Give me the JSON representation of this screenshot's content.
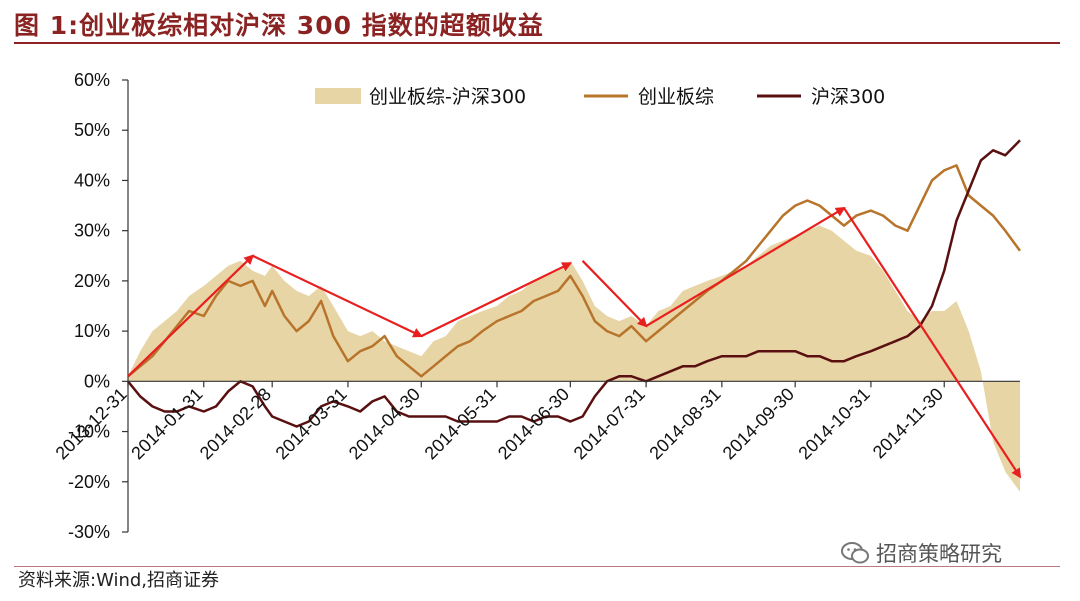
{
  "title": "图 1:创业板综相对沪深 300 指数的超额收益",
  "source": "资料来源:Wind,招商证券",
  "watermark": "招商策略研究",
  "colors": {
    "area": "#e8d5a6",
    "cyb": "#b8742a",
    "hs300": "#5a1010",
    "arrow": "#e81f1f",
    "accent": "#8b2323"
  },
  "chart_data": {
    "type": "line",
    "title": "图 1:创业板综相对沪深 300 指数的超额收益",
    "xlabel": "",
    "ylabel": "",
    "ylim": [
      -30,
      60
    ],
    "yticks": [
      "60%",
      "50%",
      "40%",
      "30%",
      "20%",
      "10%",
      "0%",
      "-10%",
      "-20%",
      "-30%"
    ],
    "x_tick_labels": [
      "2013-12-31",
      "2014-01-31",
      "2014-02-28",
      "2014-03-31",
      "2014-04-30",
      "2014-05-31",
      "2014-06-30",
      "2014-07-31",
      "2014-08-31",
      "2014-09-30",
      "2014-10-31",
      "2014-11-30"
    ],
    "x_start": "2013-12-31",
    "x_end": "2014-12-31",
    "legend": "top",
    "grid": false,
    "series": [
      {
        "name": "创业板综-沪深300",
        "kind": "area",
        "x": [
          "2013-12-31",
          "2014-01-05",
          "2014-01-10",
          "2014-01-15",
          "2014-01-20",
          "2014-01-25",
          "2014-01-31",
          "2014-02-05",
          "2014-02-10",
          "2014-02-15",
          "2014-02-20",
          "2014-02-25",
          "2014-02-28",
          "2014-03-05",
          "2014-03-10",
          "2014-03-15",
          "2014-03-20",
          "2014-03-25",
          "2014-03-31",
          "2014-04-05",
          "2014-04-10",
          "2014-04-15",
          "2014-04-20",
          "2014-04-25",
          "2014-04-30",
          "2014-05-05",
          "2014-05-10",
          "2014-05-15",
          "2014-05-20",
          "2014-05-25",
          "2014-05-31",
          "2014-06-05",
          "2014-06-10",
          "2014-06-15",
          "2014-06-20",
          "2014-06-25",
          "2014-06-30",
          "2014-07-05",
          "2014-07-10",
          "2014-07-15",
          "2014-07-20",
          "2014-07-25",
          "2014-07-31",
          "2014-08-05",
          "2014-08-10",
          "2014-08-15",
          "2014-08-20",
          "2014-08-25",
          "2014-08-31",
          "2014-09-05",
          "2014-09-10",
          "2014-09-15",
          "2014-09-20",
          "2014-09-25",
          "2014-09-30",
          "2014-10-05",
          "2014-10-10",
          "2014-10-15",
          "2014-10-20",
          "2014-10-25",
          "2014-10-31",
          "2014-11-05",
          "2014-11-10",
          "2014-11-15",
          "2014-11-20",
          "2014-11-25",
          "2014-11-30",
          "2014-12-05",
          "2014-12-10",
          "2014-12-15",
          "2014-12-20",
          "2014-12-25",
          "2014-12-31"
        ],
        "values": [
          1,
          6,
          10,
          12,
          14,
          17,
          19,
          21,
          23,
          24,
          22,
          21,
          23,
          20,
          18,
          17,
          19,
          15,
          10,
          9,
          10,
          8,
          7,
          6,
          5,
          8,
          9,
          12,
          13,
          14,
          15,
          17,
          18,
          20,
          21,
          22,
          24,
          20,
          15,
          13,
          12,
          13,
          11,
          14,
          15,
          18,
          19,
          20,
          21,
          22,
          23,
          25,
          27,
          28,
          29,
          30,
          31,
          30,
          28,
          26,
          25,
          22,
          18,
          14,
          12,
          14,
          14,
          16,
          10,
          2,
          -12,
          -18,
          -22
        ]
      },
      {
        "name": "创业板综",
        "kind": "line",
        "x": [
          "2013-12-31",
          "2014-01-05",
          "2014-01-10",
          "2014-01-15",
          "2014-01-20",
          "2014-01-25",
          "2014-01-31",
          "2014-02-05",
          "2014-02-10",
          "2014-02-15",
          "2014-02-20",
          "2014-02-25",
          "2014-02-28",
          "2014-03-05",
          "2014-03-10",
          "2014-03-15",
          "2014-03-20",
          "2014-03-25",
          "2014-03-31",
          "2014-04-05",
          "2014-04-10",
          "2014-04-15",
          "2014-04-20",
          "2014-04-25",
          "2014-04-30",
          "2014-05-05",
          "2014-05-10",
          "2014-05-15",
          "2014-05-20",
          "2014-05-25",
          "2014-05-31",
          "2014-06-05",
          "2014-06-10",
          "2014-06-15",
          "2014-06-20",
          "2014-06-25",
          "2014-06-30",
          "2014-07-05",
          "2014-07-10",
          "2014-07-15",
          "2014-07-20",
          "2014-07-25",
          "2014-07-31",
          "2014-08-05",
          "2014-08-10",
          "2014-08-15",
          "2014-08-20",
          "2014-08-25",
          "2014-08-31",
          "2014-09-05",
          "2014-09-10",
          "2014-09-15",
          "2014-09-20",
          "2014-09-25",
          "2014-09-30",
          "2014-10-05",
          "2014-10-10",
          "2014-10-15",
          "2014-10-20",
          "2014-10-25",
          "2014-10-31",
          "2014-11-05",
          "2014-11-10",
          "2014-11-15",
          "2014-11-20",
          "2014-11-25",
          "2014-11-30",
          "2014-12-05",
          "2014-12-10",
          "2014-12-15",
          "2014-12-20",
          "2014-12-25",
          "2014-12-31"
        ],
        "values": [
          1,
          3,
          5,
          8,
          11,
          14,
          13,
          17,
          20,
          19,
          20,
          15,
          18,
          13,
          10,
          12,
          16,
          9,
          4,
          6,
          7,
          9,
          5,
          3,
          1,
          3,
          5,
          7,
          8,
          10,
          12,
          13,
          14,
          16,
          17,
          18,
          21,
          17,
          12,
          10,
          9,
          11,
          8,
          10,
          12,
          14,
          16,
          18,
          20,
          22,
          24,
          27,
          30,
          33,
          35,
          36,
          35,
          33,
          31,
          33,
          34,
          33,
          31,
          30,
          35,
          40,
          42,
          43,
          37,
          35,
          33,
          30,
          26
        ]
      },
      {
        "name": "沪深300",
        "kind": "line",
        "x": [
          "2013-12-31",
          "2014-01-05",
          "2014-01-10",
          "2014-01-15",
          "2014-01-20",
          "2014-01-25",
          "2014-01-31",
          "2014-02-05",
          "2014-02-10",
          "2014-02-15",
          "2014-02-20",
          "2014-02-25",
          "2014-02-28",
          "2014-03-05",
          "2014-03-10",
          "2014-03-15",
          "2014-03-20",
          "2014-03-25",
          "2014-03-31",
          "2014-04-05",
          "2014-04-10",
          "2014-04-15",
          "2014-04-20",
          "2014-04-25",
          "2014-04-30",
          "2014-05-05",
          "2014-05-10",
          "2014-05-15",
          "2014-05-20",
          "2014-05-25",
          "2014-05-31",
          "2014-06-05",
          "2014-06-10",
          "2014-06-15",
          "2014-06-20",
          "2014-06-25",
          "2014-06-30",
          "2014-07-05",
          "2014-07-10",
          "2014-07-15",
          "2014-07-20",
          "2014-07-25",
          "2014-07-31",
          "2014-08-05",
          "2014-08-10",
          "2014-08-15",
          "2014-08-20",
          "2014-08-25",
          "2014-08-31",
          "2014-09-05",
          "2014-09-10",
          "2014-09-15",
          "2014-09-20",
          "2014-09-25",
          "2014-09-30",
          "2014-10-05",
          "2014-10-10",
          "2014-10-15",
          "2014-10-20",
          "2014-10-25",
          "2014-10-31",
          "2014-11-05",
          "2014-11-10",
          "2014-11-15",
          "2014-11-20",
          "2014-11-25",
          "2014-11-30",
          "2014-12-05",
          "2014-12-10",
          "2014-12-15",
          "2014-12-20",
          "2014-12-25",
          "2014-12-31"
        ],
        "values": [
          0,
          -3,
          -5,
          -6,
          -6,
          -5,
          -6,
          -5,
          -2,
          0,
          -1,
          -5,
          -7,
          -8,
          -9,
          -8,
          -5,
          -4,
          -5,
          -6,
          -4,
          -3,
          -6,
          -7,
          -7,
          -7,
          -7,
          -8,
          -8,
          -8,
          -8,
          -7,
          -7,
          -8,
          -7,
          -7,
          -8,
          -7,
          -3,
          0,
          1,
          1,
          0,
          1,
          2,
          3,
          3,
          4,
          5,
          5,
          5,
          6,
          6,
          6,
          6,
          5,
          5,
          4,
          4,
          5,
          6,
          7,
          8,
          9,
          11,
          15,
          22,
          32,
          38,
          44,
          46,
          45,
          48
        ]
      }
    ],
    "annotations": [
      {
        "type": "arrow",
        "from": [
          "2013-12-31",
          1
        ],
        "to": [
          "2014-02-20",
          25
        ]
      },
      {
        "type": "arrow",
        "from": [
          "2014-02-20",
          25
        ],
        "to": [
          "2014-04-30",
          9
        ]
      },
      {
        "type": "arrow",
        "from": [
          "2014-04-30",
          9
        ],
        "to": [
          "2014-06-30",
          23.5
        ]
      },
      {
        "type": "arrow",
        "from": [
          "2014-07-05",
          24
        ],
        "to": [
          "2014-07-31",
          11
        ]
      },
      {
        "type": "arrow",
        "from": [
          "2014-07-31",
          11
        ],
        "to": [
          "2014-10-20",
          34.5
        ]
      },
      {
        "type": "arrow",
        "from": [
          "2014-10-20",
          34.5
        ],
        "to": [
          "2014-12-31",
          -19
        ]
      }
    ]
  }
}
